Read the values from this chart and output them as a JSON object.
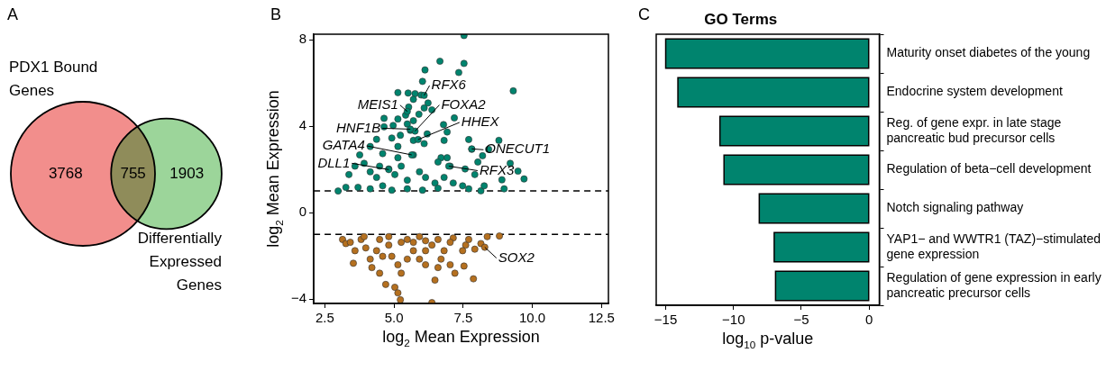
{
  "chart_data": [
    {
      "type": "other",
      "annotations": [
        "A"
      ],
      "categories": [
        "PDX1 Bound Genes",
        null,
        "Differentially Expressed Genes"
      ],
      "values": [
        3768,
        755,
        1903
      ],
      "colors": [
        "#f28e8c",
        "#8f8c5a",
        "#9cd59a"
      ],
      "data_labels": true
    },
    {
      "type": "scatter",
      "annotations": [
        "B",
        {
          "text": "RFX6",
          "x": 6.09,
          "y": 5.42
        },
        {
          "text": "MEIS1",
          "x": 5.48,
          "y": 4.68
        },
        {
          "text": "FOXA2",
          "x": 5.76,
          "y": 3.77
        },
        {
          "text": "HNF1B",
          "x": 5.59,
          "y": 3.86
        },
        {
          "text": "HHEX",
          "x": 5.87,
          "y": 3.38
        },
        {
          "text": "GATA4",
          "x": 5.64,
          "y": 2.67
        },
        {
          "text": "DLL1",
          "x": 4.81,
          "y": 1.99
        },
        {
          "text": "ONECUT1",
          "x": 7.81,
          "y": 2.95
        },
        {
          "text": "RFX3",
          "x": 6.98,
          "y": 2.15
        },
        {
          "text": "SOX2",
          "x": 8.28,
          "y": -1.6
        }
      ],
      "xlabel": "log$_{2}$ Mean Expression",
      "ylabel": "log$_{2}$ Mean Expression",
      "xlim": [
        2.1,
        12.75
      ],
      "ylim": [
        -4.2,
        8.25
      ],
      "xticks": [
        2.5,
        {
          "value": 5,
          "label": "5.0"
        },
        7.5,
        {
          "value": 10,
          "label": "10.0"
        },
        12.5
      ],
      "yticks": [
        {
          "value": -4,
          "label": "−4"
        },
        0,
        4,
        8
      ],
      "grid": false,
      "legend": false,
      "marker": "circle",
      "ref_lines": [
        {
          "axis": "y",
          "value": 1,
          "color": "#000000",
          "line_style": "dashed"
        },
        {
          "axis": "y",
          "value": -1,
          "color": "#000000",
          "line_style": "dashed"
        }
      ],
      "series": [
        {
          "color": "#00846e",
          "x": [
            7.53,
            6.66,
            7.53,
            6.12,
            7.34,
            6.03,
            9.31,
            5.14,
            5.51,
            5.76,
            5.98,
            5.7,
            6.23,
            5.53,
            6.09,
            6.37,
            5.9,
            5.42,
            7.18,
            5.14,
            4.64,
            5.7,
            5.48,
            6.79,
            4.97,
            4.64,
            5.59,
            6.92,
            5.23,
            5.7,
            7.7,
            8.79,
            6.09,
            4.37,
            6.81,
            7.81,
            8.42,
            6.7,
            8.2,
            6.92,
            3.76,
            4.59,
            5.14,
            5.7,
            6.59,
            8.03,
            9.2,
            9.48,
            9.7,
            8.9,
            8.98,
            8.14,
            8.26,
            7.92,
            7.57,
            7.03,
            2.98,
            3.26,
            3.37,
            3.59,
            3.92,
            4.14,
            4.48,
            4.81,
            5.03,
            5.26,
            5.48,
            5.92,
            6.14,
            6.48,
            6.81,
            7.14,
            7.48,
            7.7,
            3.7,
            4.14,
            4.59,
            4.92,
            5.48,
            6.03,
            6.59,
            4.37,
            5.14,
            4.14,
            4.92,
            6.2,
            6.09,
            5.48,
            5.76,
            5.59,
            5.87,
            5.64,
            4.81,
            7.81,
            6.98
          ],
          "values": [
            8.19,
            7.0,
            6.9,
            6.6,
            6.48,
            6.07,
            5.63,
            5.55,
            5.53,
            5.5,
            5.44,
            5.24,
            5.07,
            4.88,
            4.84,
            4.75,
            4.55,
            4.51,
            4.38,
            4.33,
            4.36,
            4.25,
            4.1,
            4.07,
            4.03,
            3.97,
            3.81,
            3.73,
            3.58,
            3.34,
            3.38,
            3.34,
            3.19,
            3.39,
            3.34,
            2.93,
            2.93,
            2.54,
            2.63,
            2.54,
            2.67,
            2.73,
            2.54,
            2.67,
            2.34,
            2.34,
            2.28,
            1.92,
            1.56,
            1.52,
            1.1,
            1.01,
            1.24,
            1.76,
            2.02,
            2.15,
            1.0,
            1.17,
            1.76,
            2.15,
            2.28,
            1.89,
            2.15,
            2.02,
            1.76,
            2.15,
            1.5,
            1.89,
            1.63,
            1.37,
            1.63,
            1.37,
            1.24,
            1.1,
            1.17,
            1.1,
            1.24,
            1.04,
            1.1,
            1.04,
            1.13,
            1.63,
            3.06,
            3.06,
            3.45,
            3.64,
            5.42,
            4.68,
            3.77,
            3.86,
            3.38,
            2.67,
            1.99,
            2.95,
            2.15
          ]
        },
        {
          "color": "#b5701f",
          "x": [
            3.14,
            3.26,
            3.42,
            3.59,
            3.53,
            3.81,
            3.98,
            4.14,
            4.2,
            4.48,
            4.7,
            4.48,
            4.81,
            4.92,
            5.14,
            5.26,
            5.03,
            5.14,
            5.23,
            5.7,
            5.48,
            5.92,
            6.14,
            6.37,
            6.48,
            6.59,
            7.03,
            7.2,
            7.53,
            7.87,
            7.59,
            7.92,
            7.7,
            7.14,
            6.59,
            6.14,
            5.92,
            8.37,
            8.81,
            8.14,
            8.28,
            6.81,
            7.48,
            4.37,
            3.92,
            4.81,
            5.26,
            5.7,
            6.37,
            7.03,
            4.59,
            5.48,
            6.14,
            6.7
          ],
          "values": [
            -1.24,
            -1.43,
            -1.37,
            -1.76,
            -2.34,
            -1.24,
            -1.63,
            -2.15,
            -2.54,
            -2.8,
            -3.32,
            -1.24,
            -1.5,
            -2.02,
            -2.41,
            -2.8,
            -3.45,
            -3.71,
            -4.03,
            -1.76,
            -1.24,
            -2.15,
            -2.41,
            -4.16,
            -3.12,
            -2.54,
            -2.41,
            -2.8,
            -2.47,
            -3.06,
            -1.5,
            -1.69,
            -1.24,
            -1.17,
            -1.24,
            -1.3,
            -1.11,
            -1.11,
            -1.08,
            -1.43,
            -1.6,
            -1.76,
            -1.76,
            -1.76,
            -1.11,
            -1.11,
            -1.37,
            -1.37,
            -1.5,
            -1.37,
            -2.02,
            -2.15,
            -1.76,
            -2.15
          ]
        }
      ]
    },
    {
      "type": "bar",
      "orientation": "horizontal",
      "title": "GO Terms",
      "annotations": [
        "C"
      ],
      "categories": [
        "Maturity onset diabetes of the young",
        "Endocrine system development",
        "Reg. of gene expr. in late stage pancreatic bud precursor cells",
        "Regulation of beta−cell development",
        "Notch signaling pathway",
        "YAP1− and WWTR1 (TAZ)−stimulated gene expression",
        "Regulation of gene expression in early pancreatic precursor cells"
      ],
      "values": [
        -15.0,
        -14.1,
        -11.0,
        -10.7,
        -8.1,
        -7.0,
        -6.9
      ],
      "color": "#00846e",
      "xlabel": "log$_{10}$ p-value",
      "xlim": [
        -15.7,
        0.75
      ],
      "xticks": [
        {
          "value": -15,
          "label": "−15"
        },
        {
          "value": -10,
          "label": "−10"
        },
        {
          "value": -5,
          "label": "−5"
        },
        0
      ],
      "grid": false,
      "legend": false
    }
  ]
}
